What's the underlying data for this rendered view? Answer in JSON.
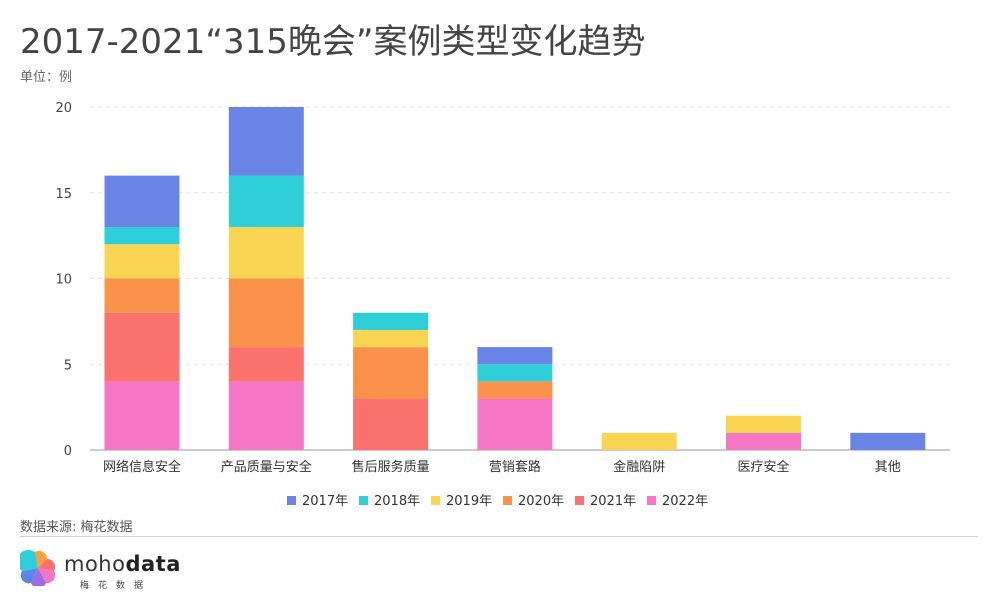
{
  "title": "2017-2021“315晚会”案例类型变化趋势",
  "unit": "单位：例",
  "source": "数据来源: 梅花数据",
  "brand": {
    "name_light": "moho",
    "name_bold": "data",
    "sub": "梅花数据"
  },
  "colors": {
    "2017年": "#6a84e6",
    "2018年": "#2ecfd8",
    "2019年": "#f9d553",
    "2020年": "#fb924c",
    "2021年": "#fb716e",
    "2022年": "#f576c4"
  },
  "chart_data": {
    "type": "bar",
    "stacked": true,
    "categories": [
      "网络信息安全",
      "产品质量与安全",
      "售后服务质量",
      "营销套路",
      "金融陷阱",
      "医疗安全",
      "其他"
    ],
    "series": [
      {
        "name": "2017年",
        "values": [
          3,
          4,
          0,
          1,
          0,
          0,
          1
        ]
      },
      {
        "name": "2018年",
        "values": [
          1,
          3,
          1,
          1,
          0,
          0,
          0
        ]
      },
      {
        "name": "2019年",
        "values": [
          2,
          3,
          1,
          0,
          1,
          1,
          0
        ]
      },
      {
        "name": "2020年",
        "values": [
          2,
          4,
          3,
          1,
          0,
          0,
          0
        ]
      },
      {
        "name": "2021年",
        "values": [
          4,
          2,
          3,
          0,
          0,
          0,
          0
        ]
      },
      {
        "name": "2022年",
        "values": [
          4,
          4,
          0,
          3,
          0,
          1,
          0
        ]
      }
    ],
    "stack_order_bottom_to_top": [
      "2022年",
      "2021年",
      "2020年",
      "2019年",
      "2018年",
      "2017年"
    ],
    "ylim": [
      0,
      20
    ],
    "yticks": [
      0,
      5,
      10,
      15,
      20
    ],
    "grid": true,
    "legend_position": "bottom-center"
  }
}
